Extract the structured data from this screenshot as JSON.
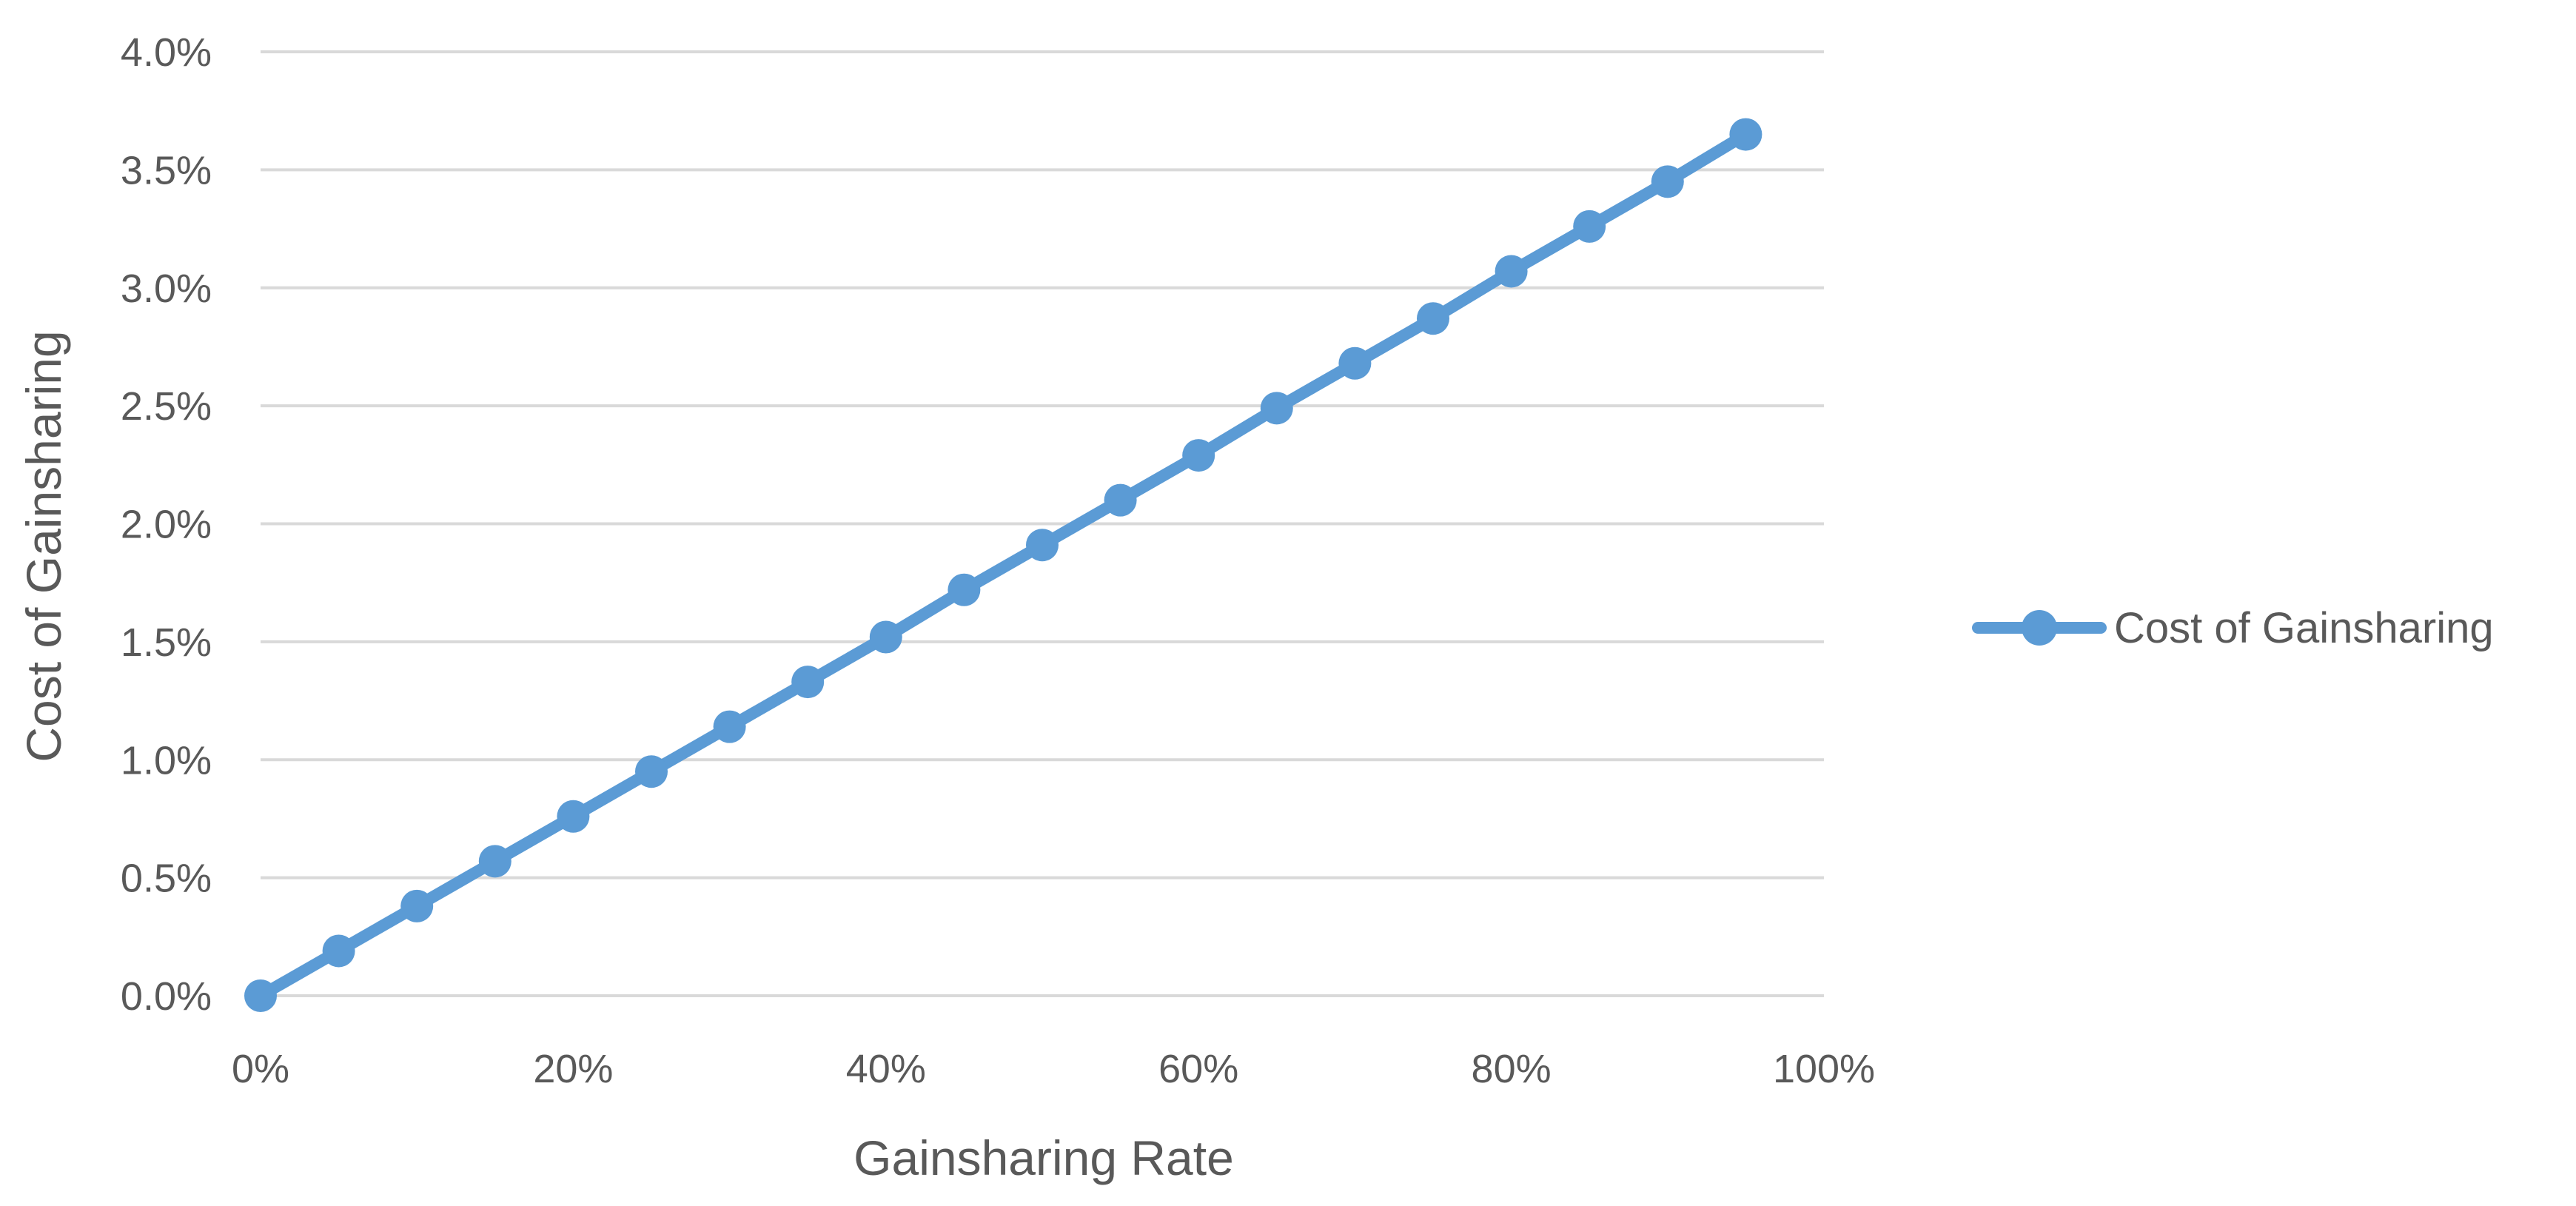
{
  "chart_data": {
    "type": "line",
    "title": "",
    "xlabel": "Gainsharing Rate",
    "ylabel": "Cost of Gainsharing",
    "x_tick_labels": [
      "0%",
      "20%",
      "40%",
      "60%",
      "80%",
      "100%"
    ],
    "y_tick_labels": [
      "0.0%",
      "0.5%",
      "1.0%",
      "1.5%",
      "2.0%",
      "2.5%",
      "3.0%",
      "3.5%",
      "4.0%"
    ],
    "xlim": [
      0,
      1.0
    ],
    "ylim": [
      0,
      0.04
    ],
    "grid": "horizontal",
    "legend_position": "right",
    "x": [
      0,
      0.05,
      0.1,
      0.15,
      0.2,
      0.25,
      0.3,
      0.35,
      0.4,
      0.45,
      0.5,
      0.55,
      0.6,
      0.65,
      0.7,
      0.75,
      0.8,
      0.85,
      0.9,
      0.95
    ],
    "series": [
      {
        "name": "Cost of Gainsharing",
        "color": "#5B9BD5",
        "marker": "circle",
        "values": [
          0.0,
          0.0019,
          0.0038,
          0.0057,
          0.0076,
          0.0095,
          0.0114,
          0.0133,
          0.0152,
          0.0172,
          0.0191,
          0.021,
          0.0229,
          0.0249,
          0.0268,
          0.0287,
          0.0307,
          0.0326,
          0.0345,
          0.0365
        ]
      }
    ]
  }
}
